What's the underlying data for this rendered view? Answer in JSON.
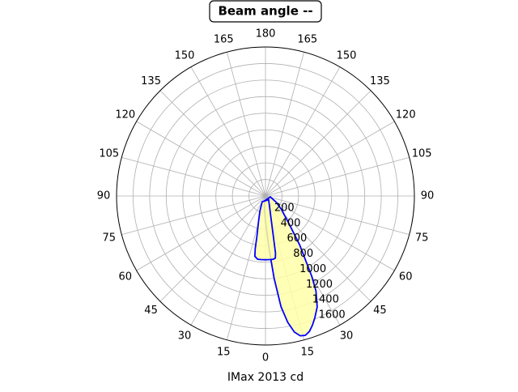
{
  "chart_data": {
    "type": "polar",
    "title": "Beam angle --",
    "xlabel": "IMax 2013 cd",
    "rlim": [
      0,
      1800
    ],
    "rticks": [
      200,
      400,
      600,
      800,
      1000,
      1200,
      1400,
      1600
    ],
    "thetaticks": [
      0,
      15,
      30,
      45,
      60,
      75,
      90,
      105,
      120,
      135,
      150,
      165,
      180
    ],
    "grid": true,
    "line_color": "#0000ff",
    "fill_color": "#ffffa8",
    "series": [
      {
        "theta": [
          -10,
          -5,
          0,
          4,
          6,
          8,
          10,
          12,
          14,
          16,
          18,
          20,
          22,
          25,
          28,
          30,
          35,
          40,
          50,
          60,
          80
        ],
        "values": [
          60,
          150,
          300,
          650,
          1000,
          1350,
          1550,
          1680,
          1740,
          1750,
          1720,
          1660,
          1590,
          1480,
          1300,
          1120,
          720,
          450,
          250,
          150,
          60
        ]
      },
      {
        "theta": [
          -30,
          -20,
          -15,
          -12,
          -11,
          -10,
          -7,
          -4,
          0,
          4,
          7,
          9,
          10,
          11,
          13,
          20,
          40
        ],
        "values": [
          80,
          200,
          330,
          500,
          650,
          740,
          770,
          770,
          770,
          770,
          770,
          760,
          700,
          500,
          320,
          150,
          60
        ]
      }
    ]
  }
}
